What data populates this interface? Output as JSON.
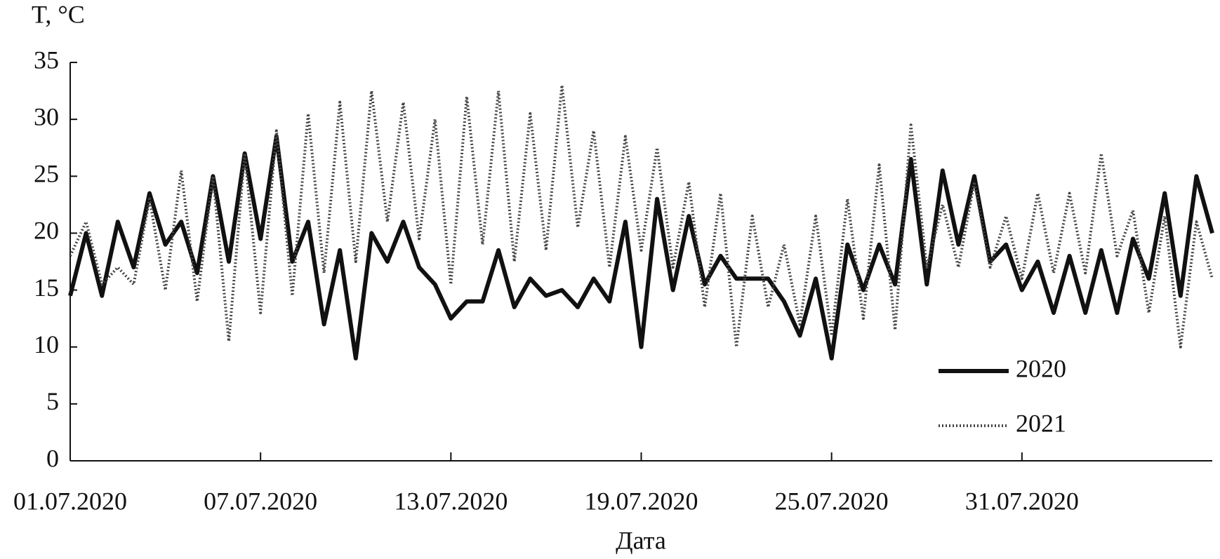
{
  "chart_data": {
    "type": "line",
    "y_label": "T, °C",
    "x_label": "Дата",
    "x": [
      0,
      0.5,
      1,
      1.5,
      2,
      2.5,
      3,
      3.5,
      4,
      4.5,
      5,
      5.5,
      6,
      6.5,
      7,
      7.5,
      8,
      8.5,
      9,
      9.5,
      10,
      10.5,
      11,
      11.5,
      12,
      12.5,
      13,
      13.5,
      14,
      14.5,
      15,
      15.5,
      16,
      16.5,
      17,
      17.5,
      18,
      18.5,
      19,
      19.5,
      20,
      20.5,
      21,
      21.5,
      22,
      22.5,
      23,
      23.5,
      24,
      24.5,
      25,
      25.5,
      26,
      26.5,
      27,
      27.5,
      28,
      28.5,
      29,
      29.5,
      30,
      30.5,
      31,
      31.5,
      32,
      32.5,
      33,
      33.5,
      34,
      34.5,
      35,
      35.5,
      36
    ],
    "series": [
      {
        "name": "2020",
        "color": "#111111",
        "line_style": "solid",
        "values": [
          14.5,
          20,
          14.5,
          21,
          17,
          23.5,
          19,
          21,
          16.5,
          25,
          17.5,
          27,
          19.5,
          28.5,
          17.5,
          21,
          12,
          18.5,
          9,
          20,
          17.5,
          21,
          17,
          15.5,
          12.5,
          14,
          14,
          18.5,
          13.5,
          16,
          14.5,
          15,
          13.5,
          16,
          14,
          21,
          10,
          23,
          15,
          21.5,
          15.5,
          18,
          16,
          16,
          16,
          14,
          11,
          16,
          9,
          19,
          15,
          19,
          15.5,
          26.5,
          15.5,
          25.5,
          19,
          25,
          17.5,
          19,
          15,
          17.5,
          13,
          18,
          13,
          18.5,
          13,
          19.5,
          16,
          23.5,
          14.5,
          25,
          20
        ]
      },
      {
        "name": "2021",
        "color": "#444444",
        "line_style": "dotted",
        "values": [
          18,
          21,
          15.5,
          17,
          15.5,
          23,
          15,
          25.5,
          14,
          25,
          10.5,
          27,
          13,
          29,
          14.5,
          30.5,
          16.5,
          31.5,
          17.5,
          32.5,
          21,
          31.5,
          19.5,
          30,
          15.5,
          32,
          19,
          32.5,
          17.5,
          30.5,
          18.5,
          33,
          20.5,
          29,
          17,
          28.5,
          18.5,
          27.5,
          17,
          24.5,
          13.5,
          23.5,
          10,
          21.5,
          13.5,
          19,
          12,
          21.5,
          11,
          23,
          12.5,
          26,
          11.5,
          29.5,
          17,
          22.5,
          17,
          24.5,
          17,
          21.5,
          16,
          23.5,
          16.5,
          23.5,
          16.5,
          27,
          18,
          22,
          13,
          21.5,
          10,
          21,
          16
        ]
      }
    ],
    "xlim": [
      0,
      36
    ],
    "xticks": [
      {
        "value": 0,
        "label": "01.07.2020"
      },
      {
        "value": 6,
        "label": "07.07.2020"
      },
      {
        "value": 12,
        "label": "13.07.2020"
      },
      {
        "value": 18,
        "label": "19.07.2020"
      },
      {
        "value": 24,
        "label": "25.07.2020"
      },
      {
        "value": 30,
        "label": "31.07.2020"
      }
    ],
    "ylim": [
      0,
      35
    ],
    "yticks": [
      0,
      5,
      10,
      15,
      20,
      25,
      30,
      35
    ],
    "grid": false,
    "legend": "lower-right"
  }
}
